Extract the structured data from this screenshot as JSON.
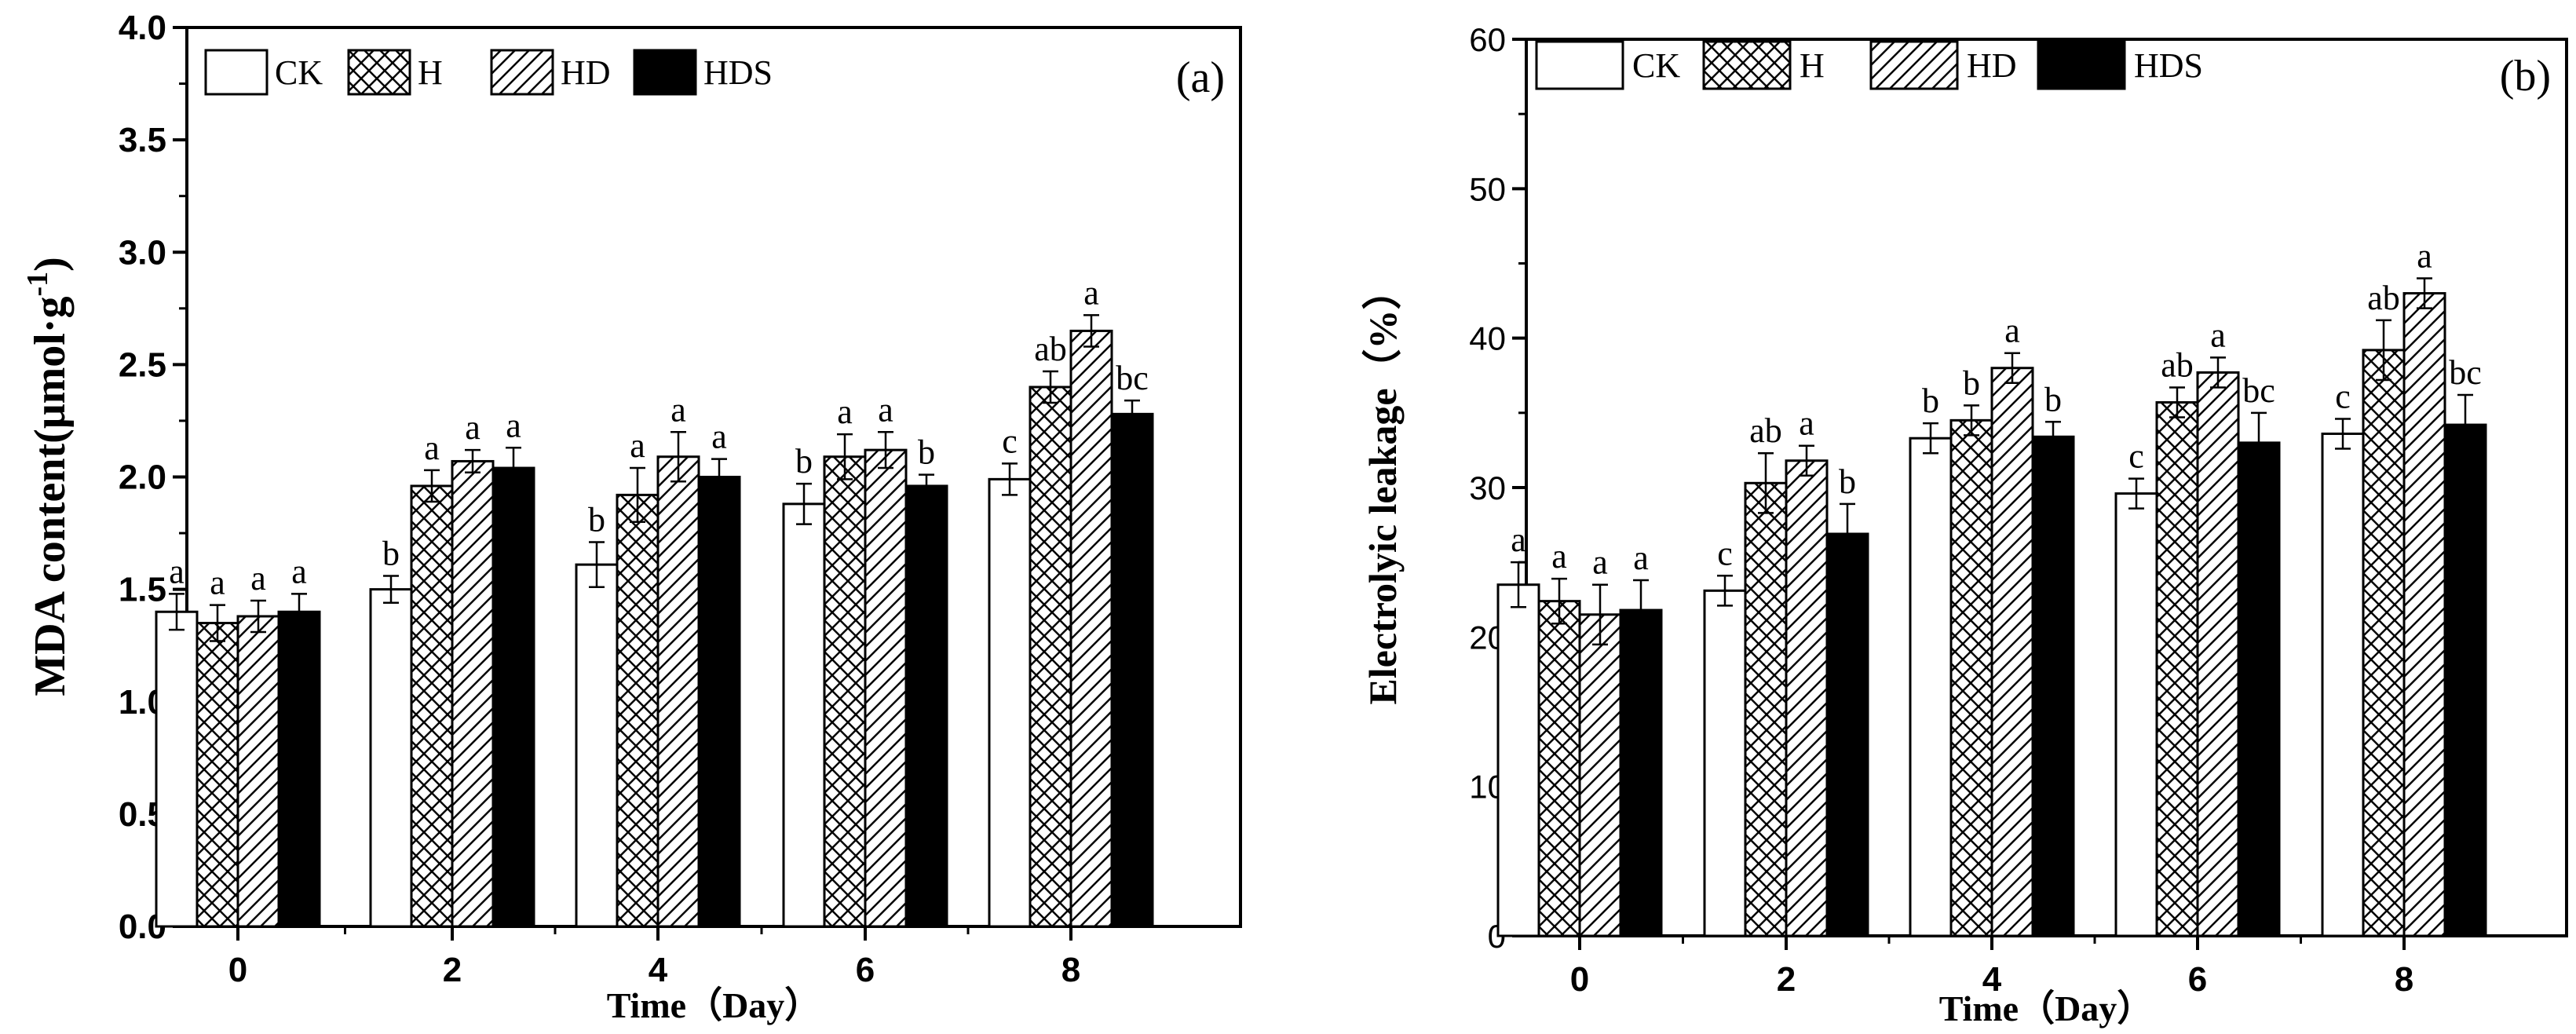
{
  "chart_data": [
    {
      "type": "bar",
      "panel_label": "(a)",
      "title": "",
      "xlabel": "Time（Day）",
      "ylabel": "MDA content(μmol·g",
      "ylabel_sup": "-1",
      "ylabel_close": ")",
      "ylim": [
        0,
        4.0
      ],
      "yticks": [
        "0.0",
        "0.5",
        "1.0",
        "1.5",
        "2.0",
        "2.5",
        "3.0",
        "3.5",
        "4.0"
      ],
      "categories": [
        "0",
        "2",
        "4",
        "6",
        "8"
      ],
      "legend_position": "top-left",
      "series": [
        {
          "name": "CK",
          "values": [
            1.4,
            1.5,
            1.61,
            1.88,
            1.99
          ],
          "errors": [
            0.08,
            0.06,
            0.1,
            0.09,
            0.07
          ],
          "letters": [
            "a",
            "b",
            "b",
            "b",
            "c"
          ]
        },
        {
          "name": "H",
          "values": [
            1.35,
            1.96,
            1.92,
            2.09,
            2.4
          ],
          "errors": [
            0.08,
            0.07,
            0.12,
            0.1,
            0.07
          ],
          "letters": [
            "a",
            "a",
            "a",
            "a",
            "ab"
          ]
        },
        {
          "name": "HD",
          "values": [
            1.38,
            2.07,
            2.09,
            2.12,
            2.65
          ],
          "errors": [
            0.07,
            0.05,
            0.11,
            0.08,
            0.07
          ],
          "letters": [
            "a",
            "a",
            "a",
            "a",
            "a"
          ]
        },
        {
          "name": "HDS",
          "values": [
            1.4,
            2.04,
            2.0,
            1.96,
            2.28
          ],
          "errors": [
            0.08,
            0.09,
            0.08,
            0.05,
            0.06
          ],
          "letters": [
            "a",
            "a",
            "a",
            "b",
            "bc"
          ]
        }
      ]
    },
    {
      "type": "bar",
      "panel_label": "(b)",
      "title": "",
      "xlabel": "Time（Day）",
      "ylabel": "Electrolyic leakage（%）",
      "ylim": [
        0,
        60
      ],
      "yticks": [
        "0",
        "10",
        "20",
        "30",
        "40",
        "50",
        "60"
      ],
      "categories": [
        "0",
        "2",
        "4",
        "6",
        "8"
      ],
      "legend_position": "top-left",
      "series": [
        {
          "name": "CK",
          "values": [
            23.5,
            23.1,
            33.3,
            29.6,
            33.6
          ],
          "errors": [
            1.5,
            1.0,
            1.0,
            1.0,
            1.0
          ],
          "letters": [
            "a",
            "c",
            "b",
            "c",
            "c"
          ]
        },
        {
          "name": "H",
          "values": [
            22.4,
            30.3,
            34.5,
            35.7,
            39.2
          ],
          "errors": [
            1.5,
            2.0,
            1.0,
            1.0,
            2.0
          ],
          "letters": [
            "a",
            "ab",
            "b",
            "ab",
            "ab"
          ]
        },
        {
          "name": "HD",
          "values": [
            21.5,
            31.8,
            38.0,
            37.7,
            43.0
          ],
          "errors": [
            2.0,
            1.0,
            1.0,
            1.0,
            1.0
          ],
          "letters": [
            "a",
            "a",
            "a",
            "a",
            "a"
          ]
        },
        {
          "name": "HDS",
          "values": [
            21.8,
            26.9,
            33.4,
            33.0,
            34.2
          ],
          "errors": [
            2.0,
            2.0,
            1.0,
            2.0,
            2.0
          ],
          "letters": [
            "a",
            "b",
            "b",
            "bc",
            "bc"
          ]
        }
      ]
    }
  ]
}
